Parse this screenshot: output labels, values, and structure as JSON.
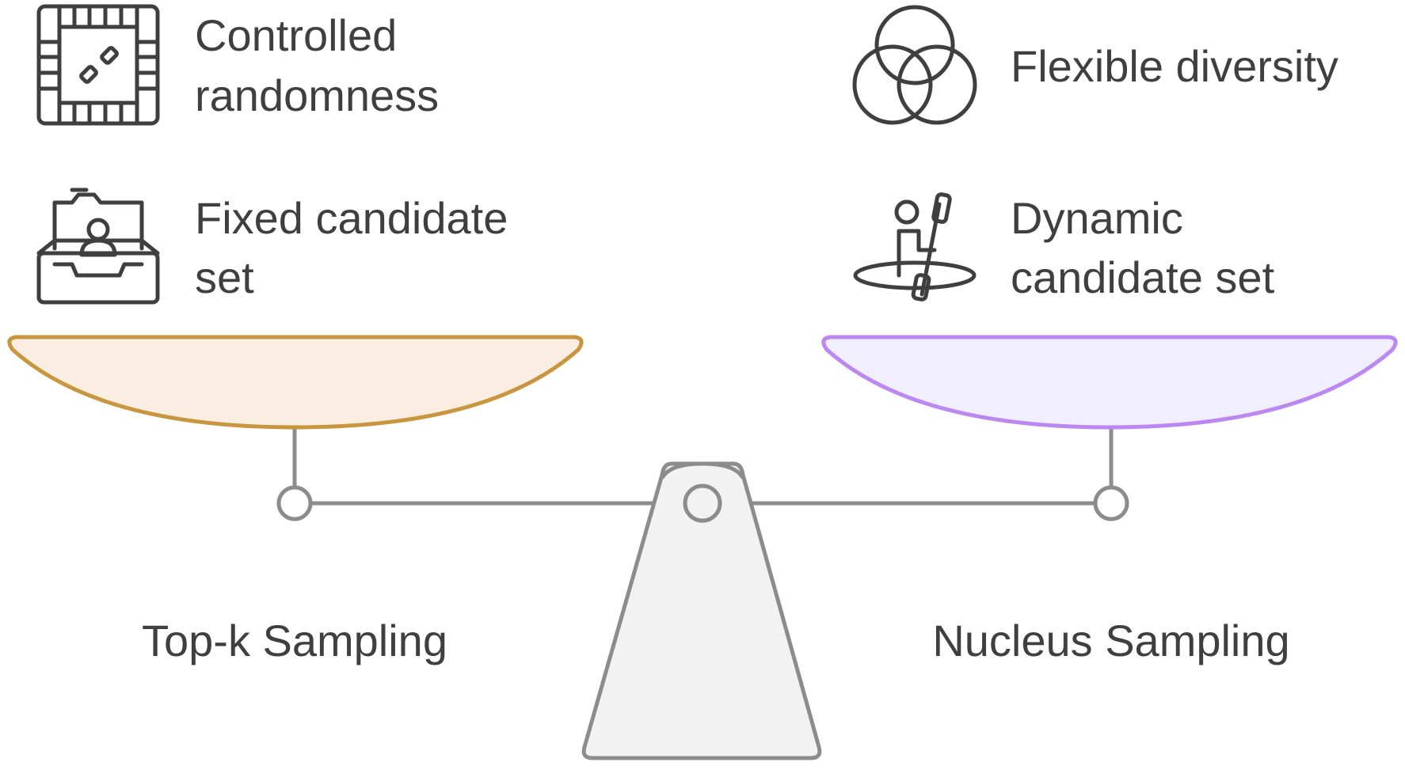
{
  "left": {
    "features": [
      {
        "line1": "Controlled",
        "line2": "randomness",
        "icon": "board-game-icon"
      },
      {
        "line1": "Fixed candidate",
        "line2": "set",
        "icon": "inbox-tray-icon"
      }
    ],
    "label": "Top-k Sampling",
    "pan_fill": "#faeee3",
    "pan_stroke": "#c9963f"
  },
  "right": {
    "features": [
      {
        "line1": "Flexible diversity",
        "line2": "",
        "icon": "venn-diagram-icon"
      },
      {
        "line1": "Dynamic",
        "line2": "candidate set",
        "icon": "kayak-paddler-icon"
      }
    ],
    "label": "Nucleus Sampling",
    "pan_fill": "#f1efff",
    "pan_stroke": "#bb88f2"
  },
  "scale": {
    "beam_color": "#8c8c8c",
    "fulcrum_fill": "#f2f2f2"
  }
}
